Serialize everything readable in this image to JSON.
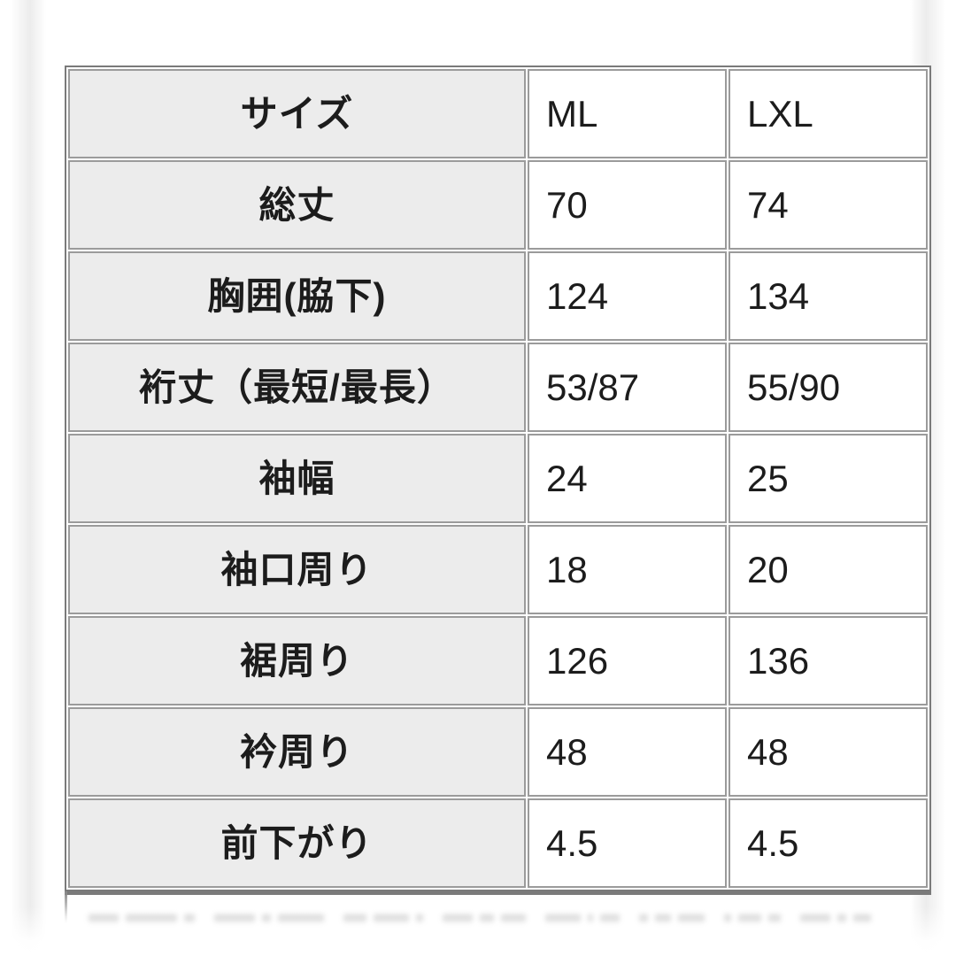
{
  "chart_data": {
    "type": "table",
    "header": {
      "label": "サイズ",
      "sizes": [
        "ML",
        "LXL"
      ]
    },
    "rows": [
      {
        "label": "総丈",
        "values": [
          "70",
          "74"
        ]
      },
      {
        "label": "胸囲(脇下)",
        "values": [
          "124",
          "134"
        ]
      },
      {
        "label": "裄丈（最短/最長）",
        "values": [
          "53/87",
          "55/90"
        ]
      },
      {
        "label": "袖幅",
        "values": [
          "24",
          "25"
        ]
      },
      {
        "label": "袖口周り",
        "values": [
          "18",
          "20"
        ]
      },
      {
        "label": "裾周り",
        "values": [
          "126",
          "136"
        ]
      },
      {
        "label": "衿周り",
        "values": [
          "48",
          "48"
        ]
      },
      {
        "label": "前下がり",
        "values": [
          "4.5",
          "4.5"
        ]
      }
    ],
    "layout": {
      "label_column_shaded": true,
      "grid": "on"
    }
  },
  "colors": {
    "label_bg": "#ececec",
    "cell_bg": "#ffffff",
    "cell_border": "#9b9b9b",
    "outer_border": "#7a7a7a",
    "text": "#1c1c1c"
  }
}
